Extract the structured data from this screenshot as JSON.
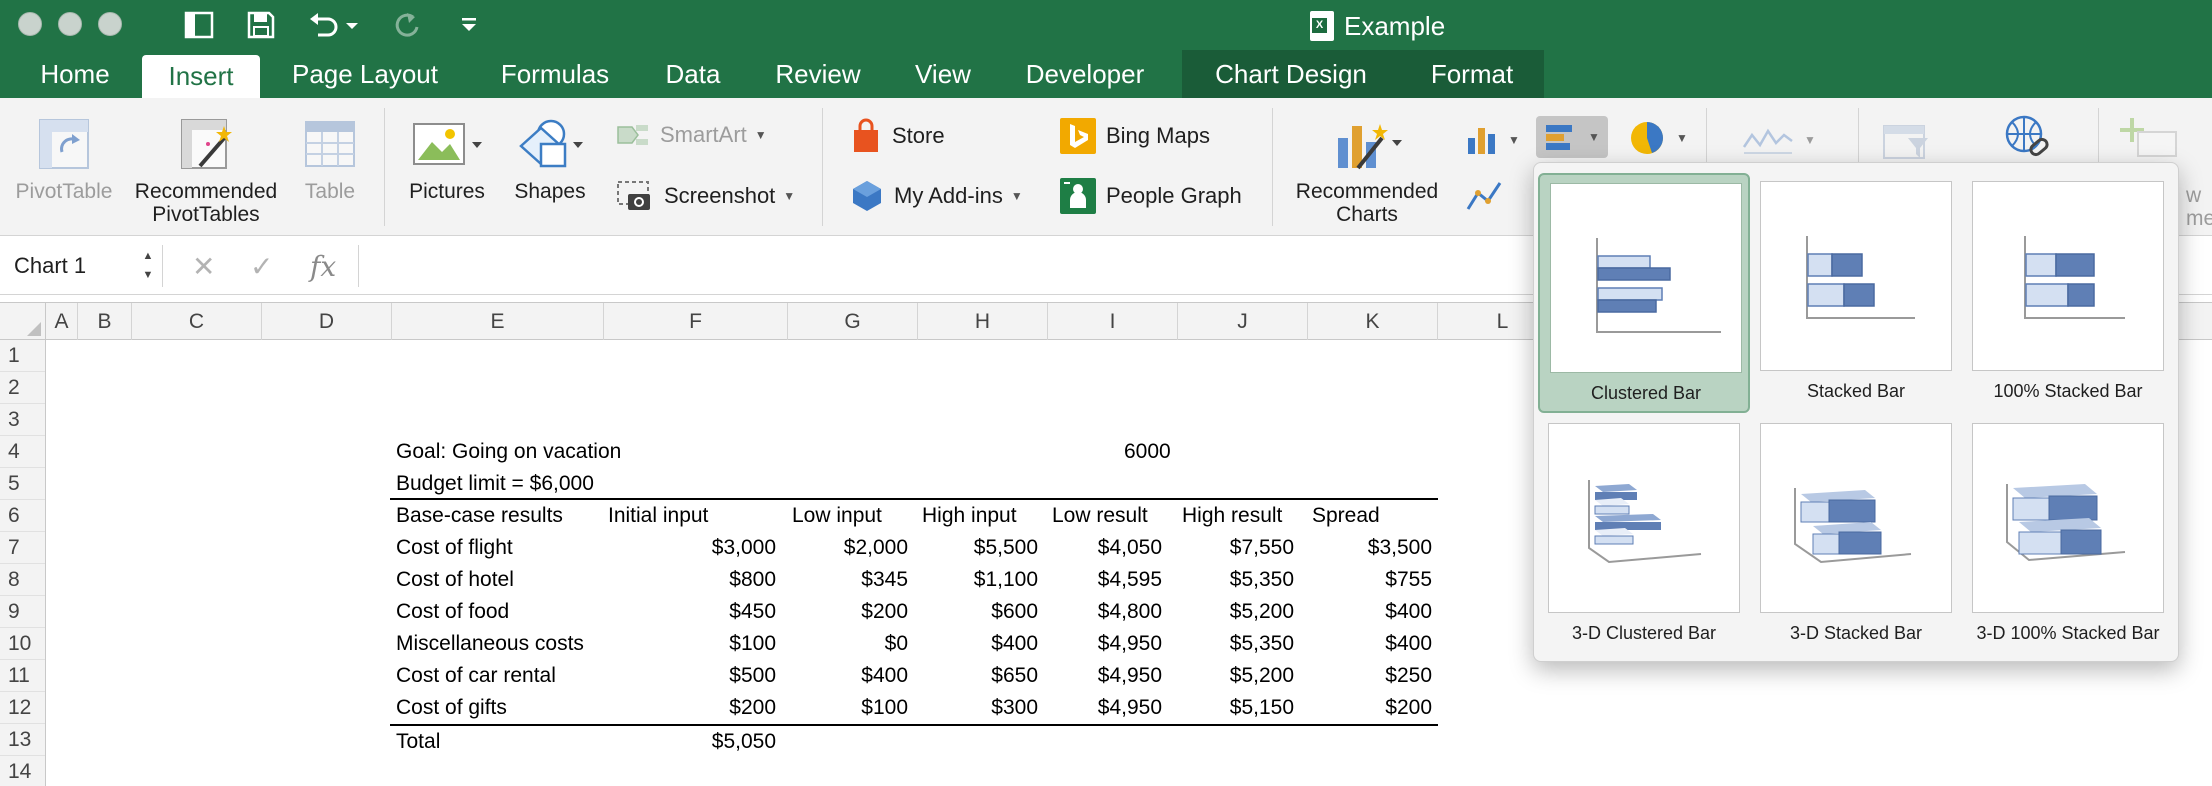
{
  "window": {
    "title": "Example"
  },
  "quick_access": {
    "icons": [
      "sidebar-toggle-icon",
      "save-icon",
      "undo-icon",
      "redo-icon",
      "customize-toolbar-icon"
    ]
  },
  "ribbon_tabs": [
    "Home",
    "Insert",
    "Page Layout",
    "Formulas",
    "Data",
    "Review",
    "View",
    "Developer",
    "Chart Design",
    "Format"
  ],
  "active_tab": "Insert",
  "ribbon": {
    "pivottable": "PivotTable",
    "recommended_pivottables_1": "Recommended",
    "recommended_pivottables_2": "PivotTables",
    "table": "Table",
    "pictures": "Pictures",
    "shapes": "Shapes",
    "smartart": "SmartArt",
    "screenshot": "Screenshot",
    "store": "Store",
    "my_addins": "My Add-ins",
    "bing_maps": "Bing Maps",
    "people_graph": "People Graph",
    "recommended_charts_1": "Recommended",
    "recommended_charts_2": "Charts",
    "cut_label_1": "w",
    "cut_label_2": "ment"
  },
  "formula_bar": {
    "name_box": "Chart 1",
    "cancel": "✕",
    "enter": "✓",
    "fx": "fx",
    "formula": ""
  },
  "columns": [
    "A",
    "B",
    "C",
    "D",
    "E",
    "F",
    "G",
    "H",
    "I",
    "J",
    "K",
    "L"
  ],
  "rows": [
    "1",
    "2",
    "3",
    "4",
    "5",
    "6",
    "7",
    "8",
    "9",
    "10",
    "11",
    "12",
    "13",
    "14"
  ],
  "sheet": {
    "goal_label": "Goal: Going on vacation",
    "goal_value": "6000",
    "budget_limit": "Budget limit = $6,000",
    "headers": [
      "Base-case results",
      "Initial input",
      "Low input",
      "High input",
      "Low result",
      "High result",
      "Spread"
    ],
    "rows": [
      [
        "Cost of flight",
        "$3,000",
        "$2,000",
        "$5,500",
        "$4,050",
        "$7,550",
        "$3,500"
      ],
      [
        "Cost of hotel",
        "$800",
        "$345",
        "$1,100",
        "$4,595",
        "$5,350",
        "$755"
      ],
      [
        "Cost of food",
        "$450",
        "$200",
        "$600",
        "$4,800",
        "$5,200",
        "$400"
      ],
      [
        "Miscellaneous costs",
        "$100",
        "$0",
        "$400",
        "$4,950",
        "$5,350",
        "$400"
      ],
      [
        "Cost of car rental",
        "$500",
        "$400",
        "$650",
        "$4,950",
        "$5,200",
        "$250"
      ],
      [
        "Cost of gifts",
        "$200",
        "$100",
        "$300",
        "$4,950",
        "$5,150",
        "$200"
      ]
    ],
    "total_label": "Total",
    "total_value": "$5,050"
  },
  "chart_gallery": {
    "items": [
      {
        "label": "Clustered Bar",
        "icon": "clustered-bar-icon",
        "selected": true
      },
      {
        "label": "Stacked Bar",
        "icon": "stacked-bar-icon",
        "selected": false
      },
      {
        "label": "100% Stacked Bar",
        "icon": "100-stacked-bar-icon",
        "selected": false
      },
      {
        "label": "3-D Clustered Bar",
        "icon": "3d-clustered-bar-icon",
        "selected": false
      },
      {
        "label": "3-D Stacked Bar",
        "icon": "3d-stacked-bar-icon",
        "selected": false
      },
      {
        "label": "3-D 100% Stacked Bar",
        "icon": "3d-100-stacked-bar-icon",
        "selected": false
      }
    ]
  },
  "colors": {
    "excel_green": "#217346",
    "context_tab": "#1a5c38",
    "selected_gallery": "#b9d3c2",
    "bar_dark": "#5f7fb5",
    "bar_light": "#d4e0f2"
  }
}
